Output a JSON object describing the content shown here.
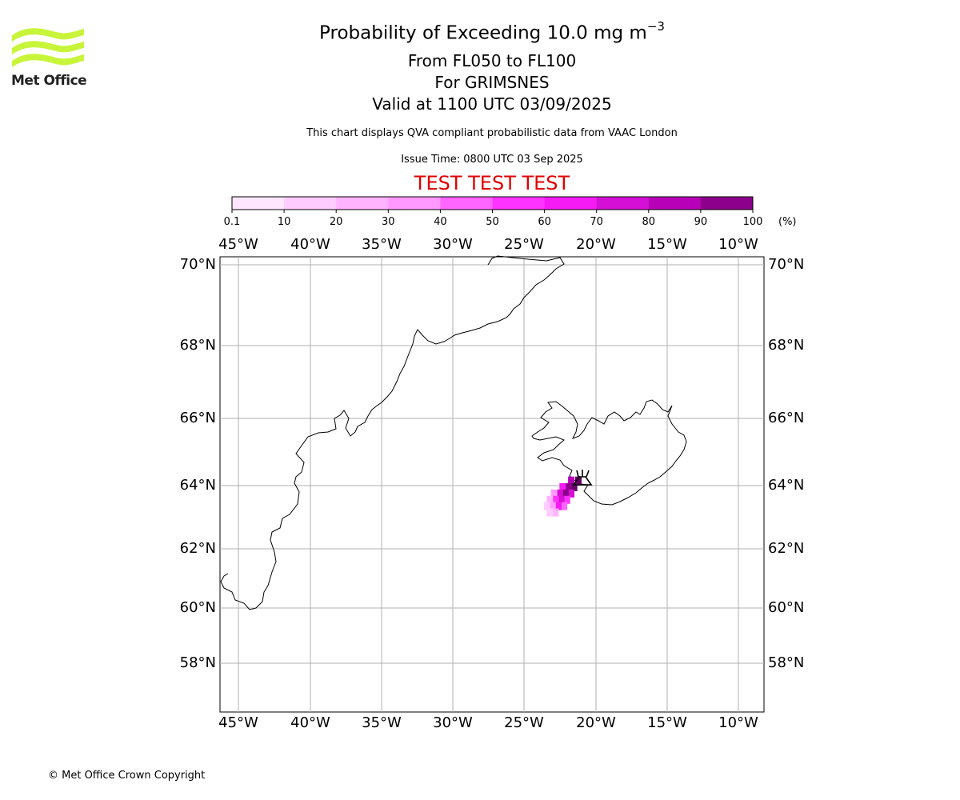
{
  "logo": {
    "text": "Met Office",
    "icon": "met-office-wave-logo",
    "color": "#c8f53a"
  },
  "title": {
    "main": "Probability of Exceeding 10.0 mg m",
    "main_sup": "−3",
    "line2": "From FL050 to FL100",
    "line3": "For GRIMSNES",
    "line4": "Valid at 1100 UTC 03/09/2025",
    "note": "This chart displays QVA compliant probabilistic data from VAAC London",
    "issue": "Issue Time: 0800 UTC 03 Sep 2025",
    "banner": "TEST TEST TEST"
  },
  "colorbar": {
    "ticks": [
      "0.1",
      "10",
      "20",
      "30",
      "40",
      "50",
      "60",
      "70",
      "80",
      "90",
      "100"
    ],
    "unit": "(%)",
    "colors": [
      "#ffe6ff",
      "#ffccff",
      "#ffb3ff",
      "#ff99ff",
      "#ff66ff",
      "#ff33ff",
      "#f51bf5",
      "#d60fd6",
      "#b800b8",
      "#8c008c",
      "#660066"
    ]
  },
  "map": {
    "lon_labels": [
      "45°W",
      "40°W",
      "35°W",
      "30°W",
      "25°W",
      "20°W",
      "15°W",
      "10°W"
    ],
    "lat_labels": [
      "70°N",
      "68°N",
      "66°N",
      "64°N",
      "62°N",
      "60°N",
      "58°N"
    ],
    "volcano_marker": "volcano-icon",
    "plume": [
      {
        "lon": -21.2,
        "lat": 64.15,
        "pct": 95
      },
      {
        "lon": -21.7,
        "lat": 64.15,
        "pct": 75
      },
      {
        "lon": -21.5,
        "lat": 63.95,
        "pct": 90
      },
      {
        "lon": -21.9,
        "lat": 63.95,
        "pct": 85
      },
      {
        "lon": -22.3,
        "lat": 63.95,
        "pct": 55
      },
      {
        "lon": -21.7,
        "lat": 63.75,
        "pct": 65
      },
      {
        "lon": -22.1,
        "lat": 63.75,
        "pct": 88
      },
      {
        "lon": -22.5,
        "lat": 63.75,
        "pct": 60
      },
      {
        "lon": -22.9,
        "lat": 63.75,
        "pct": 25
      },
      {
        "lon": -22.0,
        "lat": 63.55,
        "pct": 45
      },
      {
        "lon": -22.4,
        "lat": 63.55,
        "pct": 68
      },
      {
        "lon": -22.8,
        "lat": 63.55,
        "pct": 40
      },
      {
        "lon": -23.2,
        "lat": 63.55,
        "pct": 15
      },
      {
        "lon": -22.2,
        "lat": 63.35,
        "pct": 35
      },
      {
        "lon": -22.6,
        "lat": 63.35,
        "pct": 52
      },
      {
        "lon": -23.0,
        "lat": 63.35,
        "pct": 22
      },
      {
        "lon": -23.4,
        "lat": 63.35,
        "pct": 8
      },
      {
        "lon": -22.8,
        "lat": 63.15,
        "pct": 12
      },
      {
        "lon": -23.2,
        "lat": 63.15,
        "pct": 5
      }
    ]
  },
  "footer": {
    "copyright": "© Met Office Crown Copyright"
  }
}
